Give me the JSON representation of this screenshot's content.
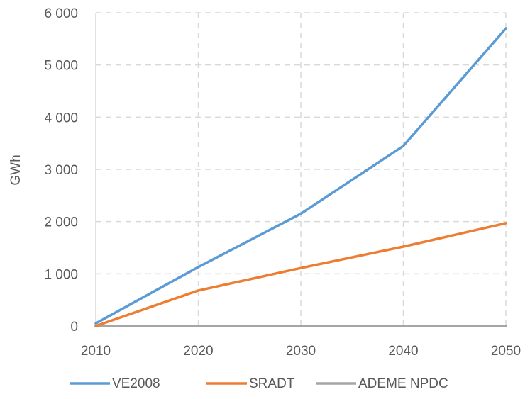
{
  "chart_data": {
    "type": "line",
    "title": "",
    "xlabel": "",
    "ylabel": "GWh",
    "x": [
      2010,
      2020,
      2030,
      2040,
      2050
    ],
    "x_tick_labels": [
      "2010",
      "2020",
      "2030",
      "2040",
      "2050"
    ],
    "ylim": [
      0,
      6000
    ],
    "y_ticks": [
      0,
      1000,
      2000,
      3000,
      4000,
      5000,
      6000
    ],
    "y_tick_labels": [
      "0",
      "1 000",
      "2 000",
      "3 000",
      "4 000",
      "5 000",
      "6 000"
    ],
    "grid": "dashed, both axes",
    "legend_position": "bottom",
    "series": [
      {
        "name": "VE2008",
        "color": "#5b9bd5",
        "values": [
          50,
          1130,
          2150,
          3450,
          5700
        ]
      },
      {
        "name": "SRADT",
        "color": "#ed7d31",
        "values": [
          0,
          680,
          1110,
          1520,
          1970
        ]
      },
      {
        "name": "ADEME NPDC",
        "color": "#a5a5a5",
        "values": [
          0,
          0,
          0,
          0,
          0
        ]
      }
    ]
  }
}
